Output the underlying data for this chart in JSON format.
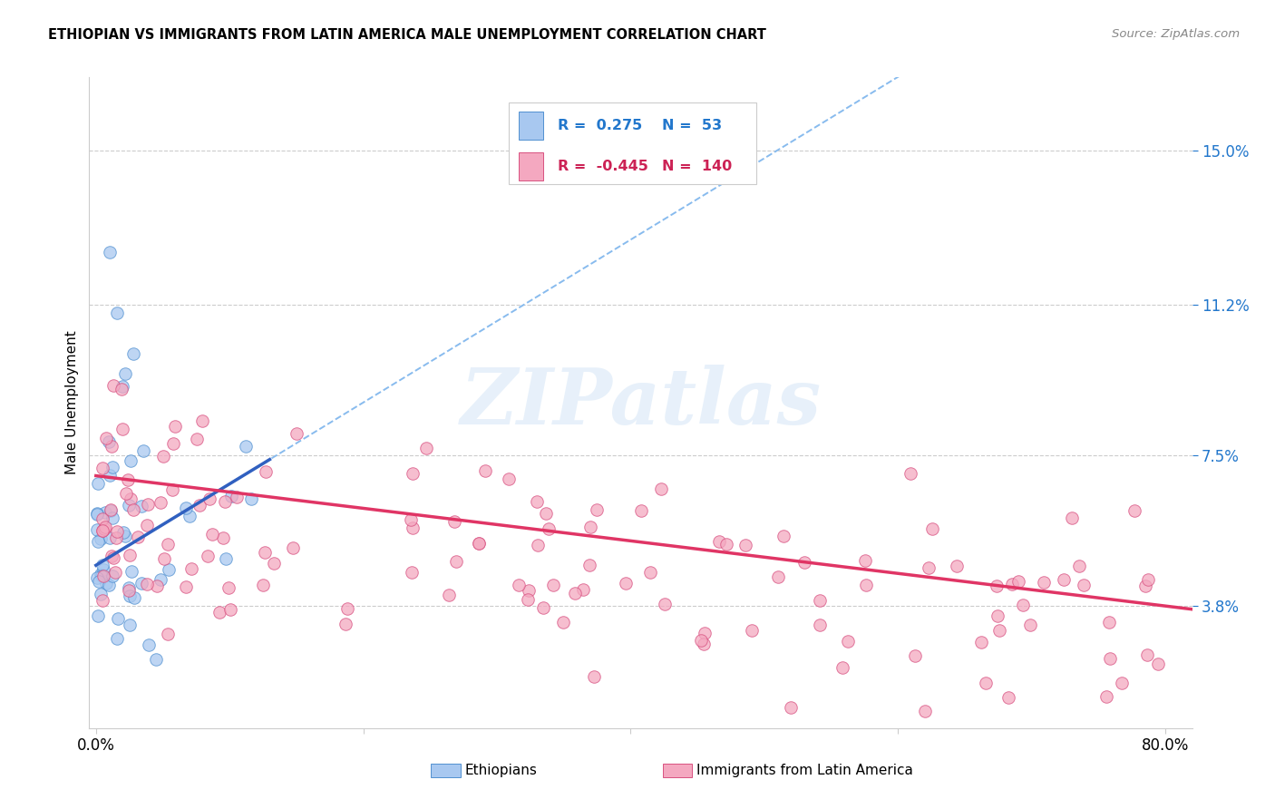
{
  "title": "ETHIOPIAN VS IMMIGRANTS FROM LATIN AMERICA MALE UNEMPLOYMENT CORRELATION CHART",
  "source": "Source: ZipAtlas.com",
  "ylabel": "Male Unemployment",
  "yticks": [
    0.038,
    0.075,
    0.112,
    0.15
  ],
  "ytick_labels": [
    "3.8%",
    "7.5%",
    "11.2%",
    "15.0%"
  ],
  "xlim": [
    -0.005,
    0.82
  ],
  "ylim": [
    0.008,
    0.168
  ],
  "ethiopian_color": "#A8C8F0",
  "ethiopian_edge": "#5090D0",
  "latin_color": "#F4A8C0",
  "latin_edge": "#D85080",
  "ethiopian_R": "0.275",
  "ethiopian_N": "53",
  "latin_R": "-0.445",
  "latin_N": "140",
  "watermark": "ZIPatlas",
  "trend_blue_solid": "#3060C0",
  "trend_blue_dash": "#88BBEE",
  "trend_pink_solid": "#E03565",
  "grid_color": "#CCCCCC",
  "background": "#FFFFFF",
  "r_color_blue": "#2277CC",
  "r_color_pink": "#CC2255",
  "legend_edge": "#CCCCCC"
}
